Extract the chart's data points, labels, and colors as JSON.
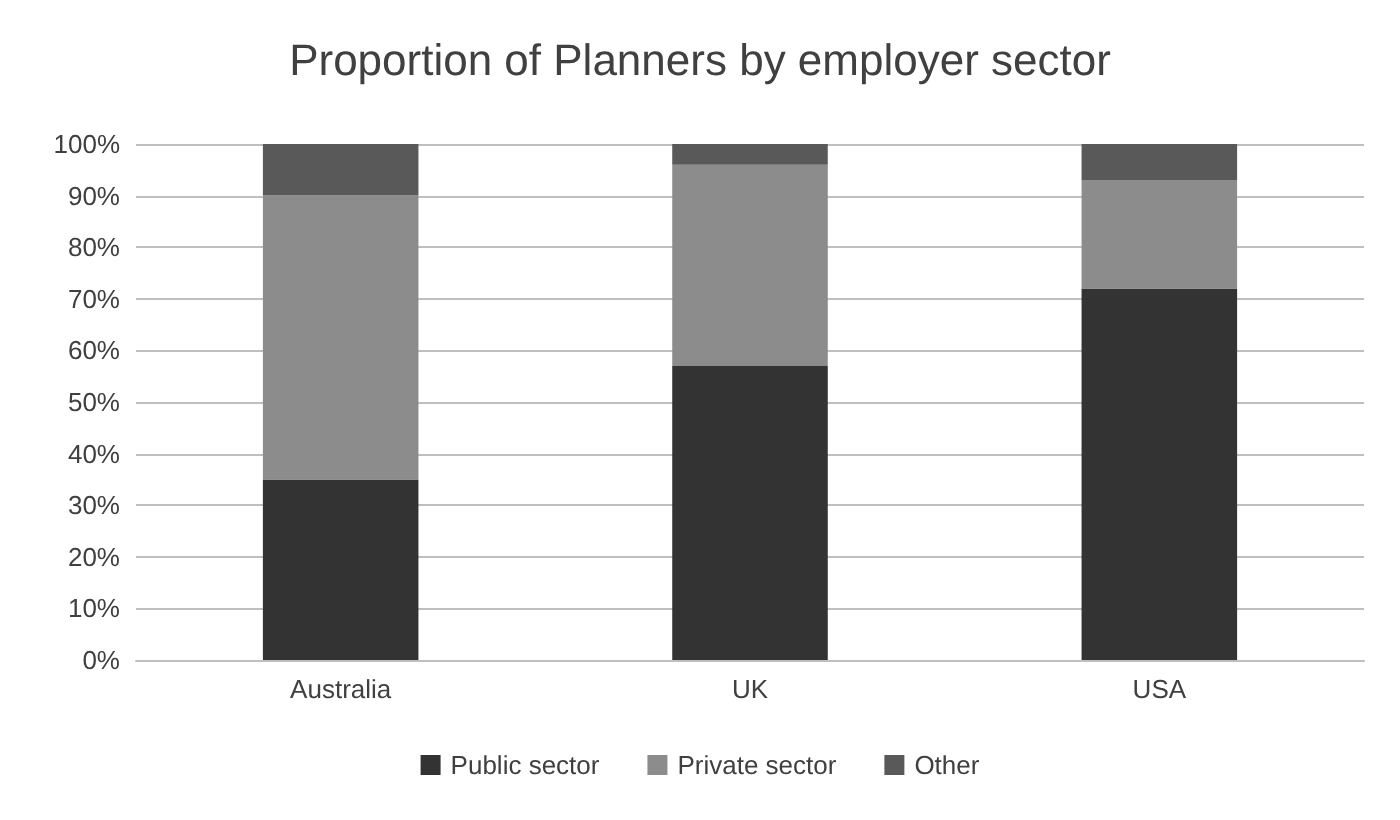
{
  "chart_data": {
    "type": "bar",
    "title": "Proportion of Planners by employer sector",
    "categories": [
      "Australia",
      "UK",
      "USA"
    ],
    "stacked": true,
    "series": [
      {
        "name": "Public sector",
        "color": "#333333",
        "values": [
          35,
          57,
          72
        ]
      },
      {
        "name": "Private sector",
        "color": "#8c8c8c",
        "values": [
          55,
          39,
          21
        ]
      },
      {
        "name": "Other",
        "color": "#595959",
        "values": [
          10,
          4,
          7
        ]
      }
    ],
    "ylim": [
      0,
      100
    ],
    "yticks": [
      {
        "value": 0,
        "label": "0%"
      },
      {
        "value": 10,
        "label": "10%"
      },
      {
        "value": 20,
        "label": "20%"
      },
      {
        "value": 30,
        "label": "30%"
      },
      {
        "value": 40,
        "label": "40%"
      },
      {
        "value": 50,
        "label": "50%"
      },
      {
        "value": 60,
        "label": "60%"
      },
      {
        "value": 70,
        "label": "70%"
      },
      {
        "value": 80,
        "label": "80%"
      },
      {
        "value": 90,
        "label": "90%"
      },
      {
        "value": 100,
        "label": "100%"
      }
    ],
    "grid": "y",
    "legend": "bottom"
  }
}
